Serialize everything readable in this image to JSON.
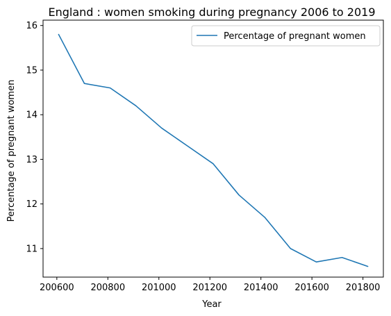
{
  "chart_data": {
    "type": "line",
    "title": "England : women smoking during pregnancy 2006 to 2019",
    "xlabel": "Year",
    "ylabel": "Percentage of pregnant women",
    "x": [
      200607,
      200708,
      200809,
      200910,
      201011,
      201112,
      201213,
      201314,
      201415,
      201516,
      201617,
      201718,
      201819
    ],
    "series": [
      {
        "name": "Percentage of pregnant women",
        "color": "#1f77b4",
        "values": [
          15.8,
          14.7,
          14.6,
          14.2,
          13.7,
          13.3,
          12.9,
          12.2,
          11.7,
          11.0,
          10.7,
          10.8,
          10.6
        ]
      }
    ],
    "xticks": [
      200600,
      200800,
      201000,
      201200,
      201400,
      201600,
      201800
    ],
    "yticks": [
      11,
      12,
      13,
      14,
      15,
      16
    ],
    "xlim": [
      200546,
      201880
    ],
    "ylim": [
      10.36,
      16.12
    ],
    "legend_position": "top-right",
    "grid": false
  }
}
